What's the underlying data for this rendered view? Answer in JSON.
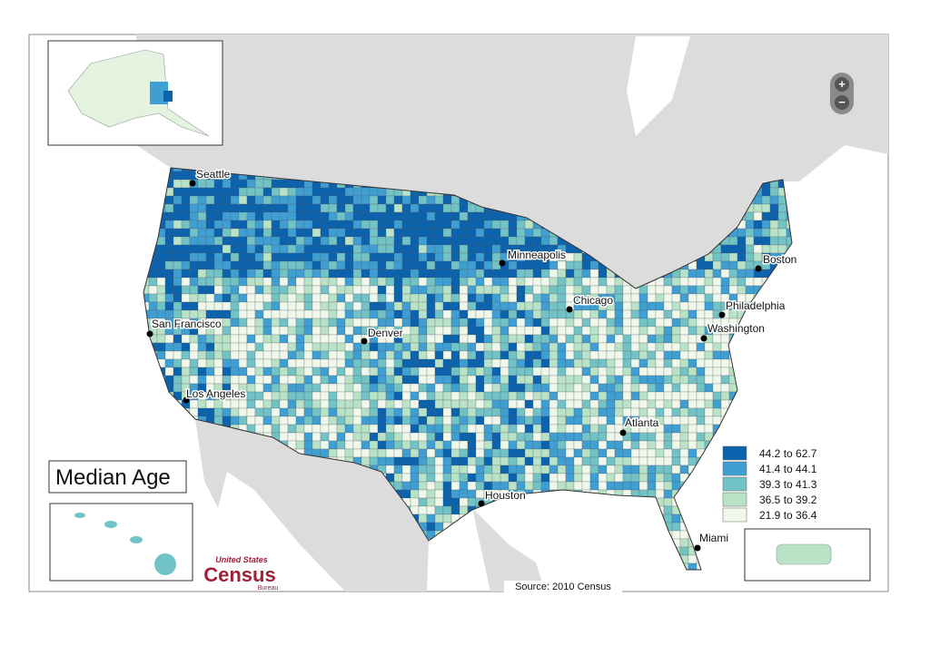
{
  "title": "Median Age",
  "legend": [
    {
      "label": "44.2 to 62.7",
      "color": "#0b63ad"
    },
    {
      "label": "41.4 to 44.1",
      "color": "#3f9fd2"
    },
    {
      "label": "39.3 to 41.3",
      "color": "#72c3c6"
    },
    {
      "label": "36.5 to 39.2",
      "color": "#b9e3c6"
    },
    {
      "label": "21.9 to 36.4",
      "color": "#f0f8eb"
    }
  ],
  "cities": [
    "Seattle",
    "Minneapolis",
    "Boston",
    "Chicago",
    "Philadelphia",
    "Washington",
    "San Francisco",
    "Denver",
    "Los Angeles",
    "Atlanta",
    "Houston",
    "Miami"
  ],
  "source": "Source:  2010 Census",
  "logo": {
    "top": "United States",
    "main": "Census",
    "bottom": "Bureau"
  },
  "zoom": [
    "+",
    "−"
  ]
}
